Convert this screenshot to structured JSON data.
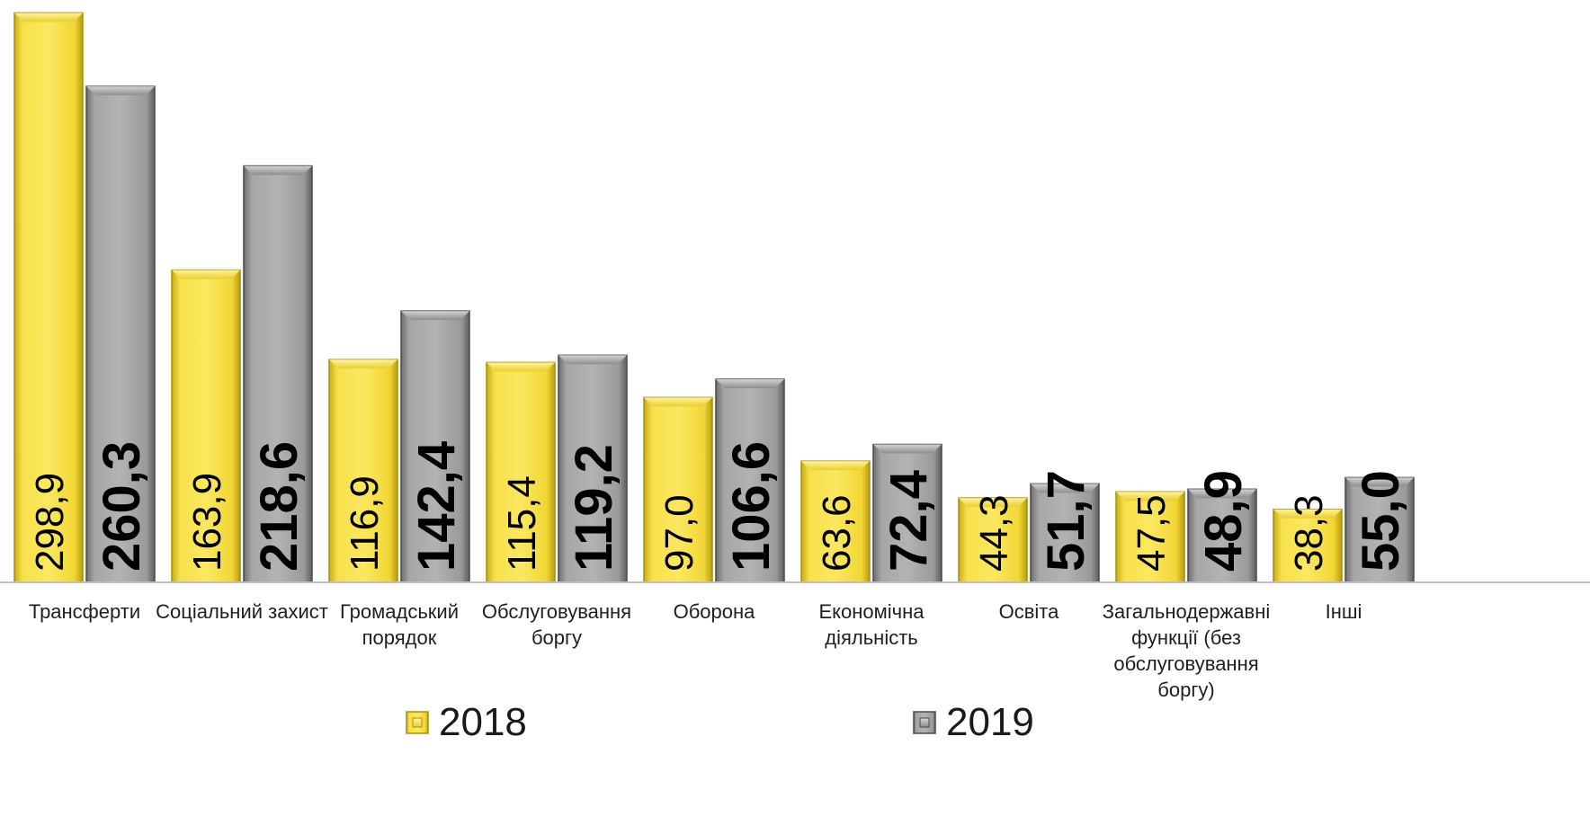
{
  "chart_data": {
    "type": "bar",
    "categories": [
      [
        "Трансферти"
      ],
      [
        "Соціальний захист"
      ],
      [
        "Громадський",
        "порядок"
      ],
      [
        "Обслуговування",
        "боргу"
      ],
      [
        "Оборона"
      ],
      [
        "Економічна",
        "діяльність"
      ],
      [
        "Освіта"
      ],
      [
        "Загальнодержавні",
        "функції (без",
        "обслуговування",
        "боргу)"
      ],
      [
        "Інші"
      ]
    ],
    "series": [
      {
        "name": "2018",
        "values": [
          298.9,
          163.9,
          116.9,
          115.4,
          97.0,
          63.6,
          44.3,
          47.5,
          38.3
        ],
        "labels": [
          "298,9",
          "163,9",
          "116,9",
          "115,4",
          "97,0",
          "63,6",
          "44,3",
          "47,5",
          "38,3"
        ],
        "color": "#f2d832"
      },
      {
        "name": "2019",
        "values": [
          260.3,
          218.6,
          142.4,
          119.2,
          106.6,
          72.4,
          51.7,
          48.9,
          55.0
        ],
        "labels": [
          "260,3",
          "218,6",
          "142,4",
          "119,2",
          "106,6",
          "72,4",
          "51,7",
          "48,9",
          "55,0"
        ],
        "color": "#9a9a9a"
      }
    ],
    "ylim": [
      0,
      300
    ],
    "legend_position": "bottom"
  }
}
